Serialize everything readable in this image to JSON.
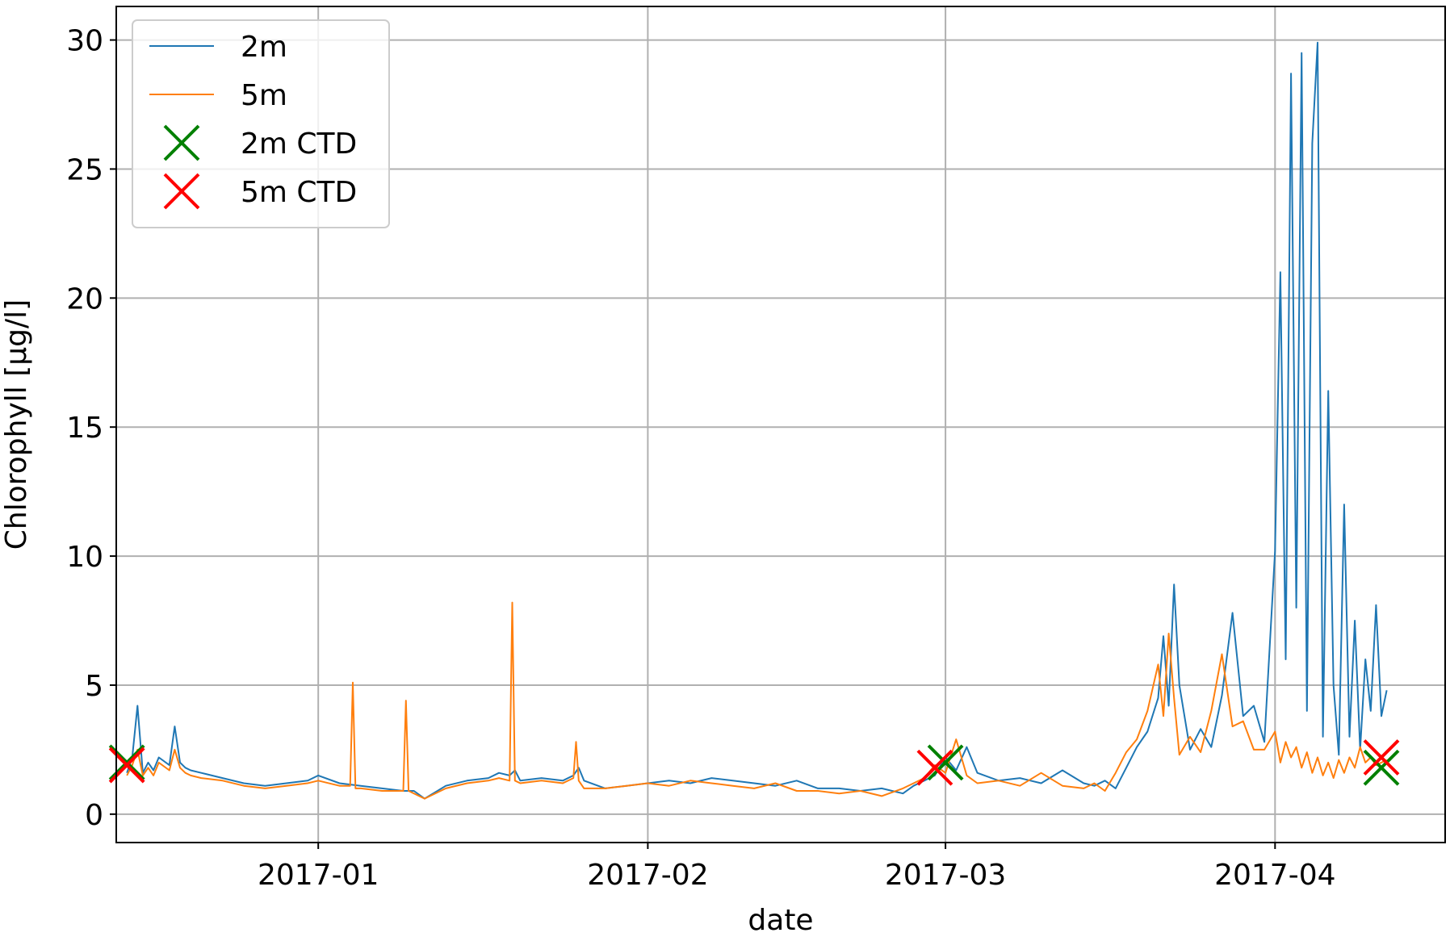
{
  "chart_data": {
    "type": "line",
    "title": "",
    "xlabel": "date",
    "ylabel": "Chlorophyll [µg/l]",
    "x_axis": "date",
    "xlim": [
      "2016-12-13",
      "2017-04-17"
    ],
    "ylim": [
      -1.1,
      31.3
    ],
    "yticks": [
      0,
      5,
      10,
      15,
      20,
      25,
      30
    ],
    "ytick_labels": [
      "0",
      "5",
      "10",
      "15",
      "20",
      "25",
      "30"
    ],
    "xticks": [
      "2017-01-01",
      "2017-02-01",
      "2017-03-01",
      "2017-04-01"
    ],
    "xtick_labels": [
      "2017-01",
      "2017-02",
      "2017-03",
      "2017-04"
    ],
    "grid": true,
    "legend_position": "top-left",
    "colors": {
      "2m": "#1f77b4",
      "5m": "#ff7f0e",
      "2m CTD": "#008000",
      "5m CTD": "#ff0000",
      "grid": "#b0b0b0"
    },
    "series": [
      {
        "name": "2m",
        "kind": "line",
        "x": [
          "2016-12-14",
          "2016-12-14T12:00",
          "2016-12-15",
          "2016-12-15T12:00",
          "2016-12-16",
          "2016-12-16T12:00",
          "2016-12-17",
          "2016-12-18",
          "2016-12-18T12:00",
          "2016-12-19",
          "2016-12-19T12:00",
          "2016-12-20",
          "2016-12-21",
          "2016-12-23",
          "2016-12-25",
          "2016-12-27",
          "2016-12-29",
          "2016-12-31",
          "2017-01-01",
          "2017-01-03",
          "2017-01-05",
          "2017-01-07",
          "2017-01-09",
          "2017-01-10",
          "2017-01-11",
          "2017-01-13",
          "2017-01-15",
          "2017-01-17",
          "2017-01-18",
          "2017-01-19",
          "2017-01-19T12:00",
          "2017-01-20",
          "2017-01-22",
          "2017-01-24",
          "2017-01-25",
          "2017-01-25T12:00",
          "2017-01-26",
          "2017-01-28",
          "2017-01-30",
          "2017-02-01",
          "2017-02-03",
          "2017-02-05",
          "2017-02-07",
          "2017-02-09",
          "2017-02-11",
          "2017-02-13",
          "2017-02-15",
          "2017-02-17",
          "2017-02-19",
          "2017-02-21",
          "2017-02-23",
          "2017-02-25",
          "2017-02-26",
          "2017-02-27",
          "2017-02-28",
          "2017-03-01",
          "2017-03-02",
          "2017-03-03",
          "2017-03-04",
          "2017-03-06",
          "2017-03-08",
          "2017-03-10",
          "2017-03-12",
          "2017-03-14",
          "2017-03-15",
          "2017-03-16",
          "2017-03-17",
          "2017-03-18",
          "2017-03-19",
          "2017-03-20",
          "2017-03-21",
          "2017-03-21T12:00",
          "2017-03-22",
          "2017-03-22T12:00",
          "2017-03-23",
          "2017-03-24",
          "2017-03-25",
          "2017-03-26",
          "2017-03-27",
          "2017-03-28",
          "2017-03-29",
          "2017-03-30",
          "2017-03-31",
          "2017-04-01",
          "2017-04-01T12:00",
          "2017-04-02",
          "2017-04-02T12:00",
          "2017-04-03",
          "2017-04-03T12:00",
          "2017-04-04",
          "2017-04-04T12:00",
          "2017-04-05",
          "2017-04-05T12:00",
          "2017-04-06",
          "2017-04-06T12:00",
          "2017-04-07",
          "2017-04-07T12:00",
          "2017-04-08",
          "2017-04-08T12:00",
          "2017-04-09",
          "2017-04-09T12:00",
          "2017-04-10",
          "2017-04-10T12:00",
          "2017-04-11",
          "2017-04-11T12:00",
          "2017-04-12",
          "2017-04-12T12:00"
        ],
        "y": [
          1.6,
          2.2,
          4.2,
          1.6,
          2.0,
          1.7,
          2.2,
          1.9,
          3.4,
          2.0,
          1.8,
          1.7,
          1.6,
          1.4,
          1.2,
          1.1,
          1.2,
          1.3,
          1.5,
          1.2,
          1.1,
          1.0,
          0.9,
          0.9,
          0.6,
          1.1,
          1.3,
          1.4,
          1.6,
          1.5,
          1.7,
          1.3,
          1.4,
          1.3,
          1.5,
          1.8,
          1.3,
          1.0,
          1.1,
          1.2,
          1.3,
          1.2,
          1.4,
          1.3,
          1.2,
          1.1,
          1.3,
          1.0,
          1.0,
          0.9,
          1.0,
          0.8,
          1.1,
          1.3,
          1.5,
          2.2,
          1.7,
          2.6,
          1.6,
          1.3,
          1.4,
          1.2,
          1.7,
          1.2,
          1.1,
          1.3,
          1.0,
          1.8,
          2.6,
          3.2,
          4.5,
          6.9,
          4.2,
          8.9,
          5.0,
          2.5,
          3.3,
          2.6,
          4.6,
          7.8,
          3.8,
          4.2,
          2.8,
          10.2,
          21.0,
          6.0,
          28.7,
          8.0,
          29.5,
          4.0,
          26.0,
          29.9,
          3.0,
          16.4,
          5.0,
          2.3,
          12.0,
          3.0,
          7.5,
          2.5,
          6.0,
          4.0,
          8.1,
          3.8,
          4.8,
          null,
          null
        ]
      },
      {
        "name": "5m",
        "kind": "line",
        "x": [
          "2016-12-14",
          "2016-12-14T12:00",
          "2016-12-15",
          "2016-12-15T12:00",
          "2016-12-16",
          "2016-12-16T12:00",
          "2016-12-17",
          "2016-12-18",
          "2016-12-18T12:00",
          "2016-12-19",
          "2016-12-19T12:00",
          "2016-12-20",
          "2016-12-21",
          "2016-12-23",
          "2016-12-25",
          "2016-12-27",
          "2016-12-29",
          "2016-12-31",
          "2017-01-01",
          "2017-01-03",
          "2017-01-04",
          "2017-01-04T06:00",
          "2017-01-04T12:00",
          "2017-01-05",
          "2017-01-07",
          "2017-01-09",
          "2017-01-09T06:00",
          "2017-01-09T12:00",
          "2017-01-10",
          "2017-01-11",
          "2017-01-13",
          "2017-01-15",
          "2017-01-17",
          "2017-01-18",
          "2017-01-19",
          "2017-01-19T06:00",
          "2017-01-19T12:00",
          "2017-01-20",
          "2017-01-22",
          "2017-01-24",
          "2017-01-25",
          "2017-01-25T06:00",
          "2017-01-25T12:00",
          "2017-01-26",
          "2017-01-28",
          "2017-01-30",
          "2017-02-01",
          "2017-02-03",
          "2017-02-05",
          "2017-02-07",
          "2017-02-09",
          "2017-02-11",
          "2017-02-13",
          "2017-02-15",
          "2017-02-17",
          "2017-02-19",
          "2017-02-21",
          "2017-02-23",
          "2017-02-25",
          "2017-02-26",
          "2017-02-27",
          "2017-02-28",
          "2017-03-01",
          "2017-03-02",
          "2017-03-03",
          "2017-03-04",
          "2017-03-06",
          "2017-03-08",
          "2017-03-10",
          "2017-03-12",
          "2017-03-14",
          "2017-03-15",
          "2017-03-16",
          "2017-03-17",
          "2017-03-18",
          "2017-03-19",
          "2017-03-20",
          "2017-03-21",
          "2017-03-21T12:00",
          "2017-03-22",
          "2017-03-22T12:00",
          "2017-03-23",
          "2017-03-24",
          "2017-03-25",
          "2017-03-26",
          "2017-03-27",
          "2017-03-28",
          "2017-03-29",
          "2017-03-30",
          "2017-03-31",
          "2017-04-01",
          "2017-04-01T12:00",
          "2017-04-02",
          "2017-04-02T12:00",
          "2017-04-03",
          "2017-04-03T12:00",
          "2017-04-04",
          "2017-04-04T12:00",
          "2017-04-05",
          "2017-04-05T12:00",
          "2017-04-06",
          "2017-04-06T12:00",
          "2017-04-07",
          "2017-04-07T12:00",
          "2017-04-08",
          "2017-04-08T12:00",
          "2017-04-09",
          "2017-04-09T12:00",
          "2017-04-10",
          "2017-04-10T12:00",
          "2017-04-11",
          "2017-04-11T12:00",
          "2017-04-12",
          "2017-04-12T12:00"
        ],
        "y": [
          1.5,
          1.9,
          2.5,
          1.5,
          1.8,
          1.5,
          2.0,
          1.7,
          2.5,
          1.8,
          1.6,
          1.5,
          1.4,
          1.3,
          1.1,
          1.0,
          1.1,
          1.2,
          1.3,
          1.1,
          1.1,
          5.1,
          1.0,
          1.0,
          0.9,
          0.9,
          4.4,
          0.9,
          0.8,
          0.6,
          1.0,
          1.2,
          1.3,
          1.4,
          1.3,
          8.2,
          1.3,
          1.2,
          1.3,
          1.2,
          1.4,
          2.8,
          1.3,
          1.0,
          1.0,
          1.1,
          1.2,
          1.1,
          1.3,
          1.2,
          1.1,
          1.0,
          1.2,
          0.9,
          0.9,
          0.8,
          0.9,
          0.7,
          1.0,
          1.2,
          1.4,
          1.9,
          1.6,
          2.9,
          1.5,
          1.2,
          1.3,
          1.1,
          1.6,
          1.1,
          1.0,
          1.2,
          0.9,
          1.6,
          2.4,
          2.9,
          4.0,
          5.8,
          3.8,
          7.0,
          4.5,
          2.3,
          3.0,
          2.4,
          4.0,
          6.2,
          3.4,
          3.6,
          2.5,
          2.5,
          3.2,
          2.0,
          2.8,
          2.2,
          2.6,
          1.8,
          2.4,
          1.6,
          2.2,
          1.5,
          2.0,
          1.4,
          2.1,
          1.6,
          2.2,
          1.8,
          2.6,
          2.0,
          2.2,
          1.9,
          2.0,
          2.1,
          null,
          null
        ]
      },
      {
        "name": "2m CTD",
        "kind": "scatter",
        "marker": "x",
        "x": [
          "2016-12-14",
          "2017-03-01",
          "2017-04-11"
        ],
        "y": [
          2.0,
          2.0,
          1.8
        ]
      },
      {
        "name": "5m CTD",
        "kind": "scatter",
        "marker": "x",
        "x": [
          "2016-12-14",
          "2017-02-28",
          "2017-04-11"
        ],
        "y": [
          1.9,
          1.8,
          2.2
        ]
      }
    ]
  }
}
